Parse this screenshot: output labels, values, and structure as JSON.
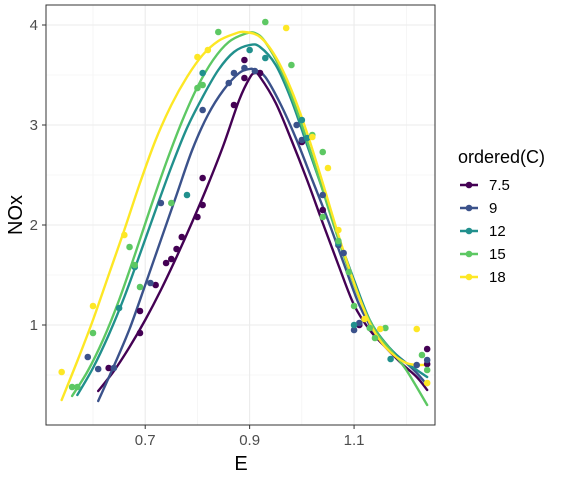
{
  "chart_data": {
    "type": "scatter",
    "xlabel": "E",
    "ylabel": "NOx",
    "xlim": [
      0.51,
      1.255
    ],
    "ylim": [
      0.0,
      4.2
    ],
    "x_ticks": [
      0.7,
      0.9,
      1.1
    ],
    "x_tick_labels": [
      "0.7",
      "0.9",
      "1.1"
    ],
    "y_ticks": [
      1,
      2,
      3,
      4
    ],
    "y_tick_labels": [
      "1",
      "2",
      "3",
      "4"
    ],
    "grid": true,
    "legend": {
      "title": "ordered(C)",
      "placement": "right"
    },
    "series": [
      {
        "name": "7.5",
        "color": "#440154",
        "points": [
          [
            0.63,
            0.57
          ],
          [
            0.69,
            0.92
          ],
          [
            0.69,
            1.14
          ],
          [
            0.72,
            1.4
          ],
          [
            0.74,
            1.62
          ],
          [
            0.75,
            1.66
          ],
          [
            0.76,
            1.76
          ],
          [
            0.77,
            1.88
          ],
          [
            0.8,
            2.08
          ],
          [
            0.81,
            2.2
          ],
          [
            0.81,
            2.47
          ],
          [
            0.87,
            3.2
          ],
          [
            0.89,
            3.47
          ],
          [
            0.89,
            3.65
          ],
          [
            0.92,
            3.52
          ],
          [
            1.0,
            2.83
          ],
          [
            1.04,
            2.15
          ],
          [
            1.11,
            1.0
          ],
          [
            1.24,
            0.76
          ],
          [
            1.24,
            0.61
          ]
        ],
        "fit": [
          [
            0.61,
            0.34
          ],
          [
            0.64,
            0.54
          ],
          [
            0.67,
            0.78
          ],
          [
            0.7,
            1.05
          ],
          [
            0.73,
            1.35
          ],
          [
            0.76,
            1.68
          ],
          [
            0.79,
            2.03
          ],
          [
            0.82,
            2.4
          ],
          [
            0.85,
            2.8
          ],
          [
            0.88,
            3.25
          ],
          [
            0.9,
            3.47
          ],
          [
            0.91,
            3.52
          ],
          [
            0.92,
            3.48
          ],
          [
            0.95,
            3.22
          ],
          [
            0.98,
            2.85
          ],
          [
            1.01,
            2.45
          ],
          [
            1.04,
            2.02
          ],
          [
            1.07,
            1.6
          ],
          [
            1.1,
            1.2
          ],
          [
            1.13,
            0.95
          ],
          [
            1.16,
            0.78
          ],
          [
            1.19,
            0.62
          ],
          [
            1.22,
            0.48
          ],
          [
            1.24,
            0.35
          ]
        ]
      },
      {
        "name": "9",
        "color": "#3b528b",
        "points": [
          [
            0.59,
            0.68
          ],
          [
            0.61,
            0.56
          ],
          [
            0.64,
            0.57
          ],
          [
            0.71,
            1.42
          ],
          [
            0.73,
            2.22
          ],
          [
            0.81,
            3.15
          ],
          [
            0.86,
            3.42
          ],
          [
            0.87,
            3.52
          ],
          [
            0.89,
            3.57
          ],
          [
            0.91,
            3.54
          ],
          [
            0.99,
            3.0
          ],
          [
            1.0,
            2.85
          ],
          [
            1.04,
            2.3
          ],
          [
            1.07,
            1.8
          ],
          [
            1.08,
            1.72
          ],
          [
            1.1,
            0.95
          ],
          [
            1.11,
            1.02
          ],
          [
            1.22,
            0.6
          ],
          [
            1.24,
            0.65
          ]
        ],
        "fit": [
          [
            0.61,
            0.24
          ],
          [
            0.64,
            0.59
          ],
          [
            0.67,
            0.96
          ],
          [
            0.7,
            1.4
          ],
          [
            0.73,
            1.85
          ],
          [
            0.76,
            2.3
          ],
          [
            0.79,
            2.75
          ],
          [
            0.82,
            3.1
          ],
          [
            0.85,
            3.35
          ],
          [
            0.88,
            3.52
          ],
          [
            0.9,
            3.56
          ],
          [
            0.91,
            3.55
          ],
          [
            0.93,
            3.48
          ],
          [
            0.96,
            3.2
          ],
          [
            0.99,
            2.85
          ],
          [
            1.02,
            2.45
          ],
          [
            1.05,
            2.05
          ],
          [
            1.08,
            1.62
          ],
          [
            1.11,
            1.2
          ],
          [
            1.14,
            0.92
          ],
          [
            1.17,
            0.75
          ],
          [
            1.2,
            0.62
          ],
          [
            1.22,
            0.52
          ],
          [
            1.24,
            0.4
          ]
        ]
      },
      {
        "name": "12",
        "color": "#21908d",
        "points": [
          [
            0.65,
            1.17
          ],
          [
            0.68,
            1.58
          ],
          [
            0.78,
            2.3
          ],
          [
            0.81,
            3.52
          ],
          [
            0.9,
            3.75
          ],
          [
            0.93,
            3.67
          ],
          [
            1.0,
            3.05
          ],
          [
            1.01,
            2.87
          ],
          [
            1.07,
            1.82
          ],
          [
            1.1,
            1.0
          ],
          [
            1.17,
            0.66
          ]
        ],
        "fit": [
          [
            0.57,
            0.3
          ],
          [
            0.6,
            0.57
          ],
          [
            0.63,
            0.9
          ],
          [
            0.66,
            1.28
          ],
          [
            0.69,
            1.71
          ],
          [
            0.72,
            2.15
          ],
          [
            0.75,
            2.58
          ],
          [
            0.78,
            2.97
          ],
          [
            0.81,
            3.28
          ],
          [
            0.84,
            3.55
          ],
          [
            0.87,
            3.73
          ],
          [
            0.9,
            3.8
          ],
          [
            0.92,
            3.78
          ],
          [
            0.95,
            3.6
          ],
          [
            0.98,
            3.25
          ],
          [
            1.01,
            2.8
          ],
          [
            1.04,
            2.35
          ],
          [
            1.07,
            1.88
          ],
          [
            1.1,
            1.45
          ],
          [
            1.13,
            1.05
          ],
          [
            1.16,
            0.82
          ],
          [
            1.19,
            0.66
          ],
          [
            1.22,
            0.55
          ],
          [
            1.24,
            0.48
          ]
        ]
      },
      {
        "name": "15",
        "color": "#5dc863",
        "points": [
          [
            0.56,
            0.38
          ],
          [
            0.57,
            0.38
          ],
          [
            0.6,
            0.92
          ],
          [
            0.67,
            1.78
          ],
          [
            0.68,
            1.6
          ],
          [
            0.69,
            1.38
          ],
          [
            0.75,
            2.22
          ],
          [
            0.8,
            3.37
          ],
          [
            0.81,
            3.4
          ],
          [
            0.84,
            3.93
          ],
          [
            0.93,
            4.03
          ],
          [
            0.98,
            3.6
          ],
          [
            1.02,
            2.9
          ],
          [
            1.04,
            2.73
          ],
          [
            1.04,
            2.08
          ],
          [
            1.07,
            1.84
          ],
          [
            1.09,
            1.53
          ],
          [
            1.1,
            1.19
          ],
          [
            1.13,
            0.97
          ],
          [
            1.14,
            0.87
          ],
          [
            1.16,
            0.97
          ],
          [
            1.23,
            0.7
          ],
          [
            1.24,
            0.55
          ]
        ],
        "fit": [
          [
            0.56,
            0.29
          ],
          [
            0.59,
            0.54
          ],
          [
            0.62,
            0.86
          ],
          [
            0.65,
            1.25
          ],
          [
            0.68,
            1.7
          ],
          [
            0.71,
            2.17
          ],
          [
            0.74,
            2.62
          ],
          [
            0.77,
            3.03
          ],
          [
            0.8,
            3.38
          ],
          [
            0.83,
            3.65
          ],
          [
            0.86,
            3.83
          ],
          [
            0.89,
            3.91
          ],
          [
            0.91,
            3.92
          ],
          [
            0.93,
            3.83
          ],
          [
            0.96,
            3.55
          ],
          [
            0.99,
            3.15
          ],
          [
            1.02,
            2.68
          ],
          [
            1.05,
            2.18
          ],
          [
            1.08,
            1.7
          ],
          [
            1.11,
            1.27
          ],
          [
            1.14,
            0.95
          ],
          [
            1.17,
            0.75
          ],
          [
            1.2,
            0.55
          ],
          [
            1.24,
            0.2
          ]
        ]
      },
      {
        "name": "18",
        "color": "#fde725",
        "points": [
          [
            0.54,
            0.53
          ],
          [
            0.6,
            1.19
          ],
          [
            0.66,
            1.9
          ],
          [
            0.8,
            3.68
          ],
          [
            0.82,
            3.75
          ],
          [
            0.97,
            3.97
          ],
          [
            1.02,
            2.88
          ],
          [
            1.05,
            2.57
          ],
          [
            1.07,
            1.95
          ],
          [
            1.12,
            1.06
          ],
          [
            1.15,
            0.96
          ],
          [
            1.22,
            0.96
          ],
          [
            1.24,
            0.42
          ]
        ],
        "fit": [
          [
            0.54,
            0.25
          ],
          [
            0.57,
            0.64
          ],
          [
            0.6,
            1.05
          ],
          [
            0.63,
            1.5
          ],
          [
            0.66,
            1.95
          ],
          [
            0.69,
            2.42
          ],
          [
            0.72,
            2.85
          ],
          [
            0.75,
            3.2
          ],
          [
            0.78,
            3.48
          ],
          [
            0.81,
            3.7
          ],
          [
            0.84,
            3.84
          ],
          [
            0.87,
            3.91
          ],
          [
            0.89,
            3.93
          ],
          [
            0.92,
            3.88
          ],
          [
            0.95,
            3.68
          ],
          [
            0.98,
            3.35
          ],
          [
            1.01,
            2.92
          ],
          [
            1.04,
            2.42
          ],
          [
            1.07,
            1.9
          ],
          [
            1.1,
            1.42
          ],
          [
            1.13,
            1.02
          ],
          [
            1.16,
            0.78
          ],
          [
            1.2,
            0.62
          ],
          [
            1.24,
            0.6
          ]
        ]
      }
    ]
  }
}
